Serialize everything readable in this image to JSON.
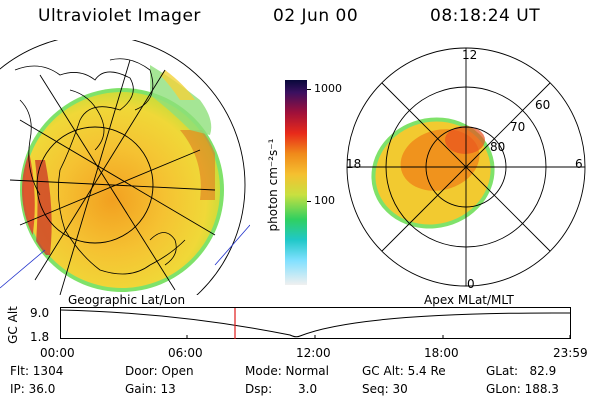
{
  "header": {
    "title": "Ultraviolet Imager",
    "date": "02 Jun 00",
    "time": "08:18:24 UT"
  },
  "colorbar": {
    "unit_label": "photon cm⁻²s⁻¹",
    "ticks": [
      "1000",
      "100"
    ]
  },
  "polar_plot": {
    "mlt_labels": [
      "12",
      "18",
      "6",
      "0"
    ],
    "lat_labels": [
      "60",
      "70",
      "80"
    ]
  },
  "timeline": {
    "y_label": "GC Alt",
    "y_ticks": [
      "9.0",
      "1.8"
    ],
    "left_label": "Geographic Lat/Lon",
    "right_label": "Apex MLat/MLT",
    "x_ticks": [
      "00:00",
      "06:00",
      "12:00",
      "18:00",
      "23:59"
    ]
  },
  "info": {
    "flt": "Flt: 1304",
    "ip": "IP: 36.0",
    "door": "Door: Open",
    "gain": "Gain: 13",
    "mode": "Mode: Normal",
    "dsp_label": "Dsp:",
    "dsp_value": "3.0",
    "gcalt": "GC Alt: 5.4 Re",
    "seq": "Seq: 30",
    "glat": "GLat:   82.9",
    "glon": "GLon: 188.3"
  }
}
